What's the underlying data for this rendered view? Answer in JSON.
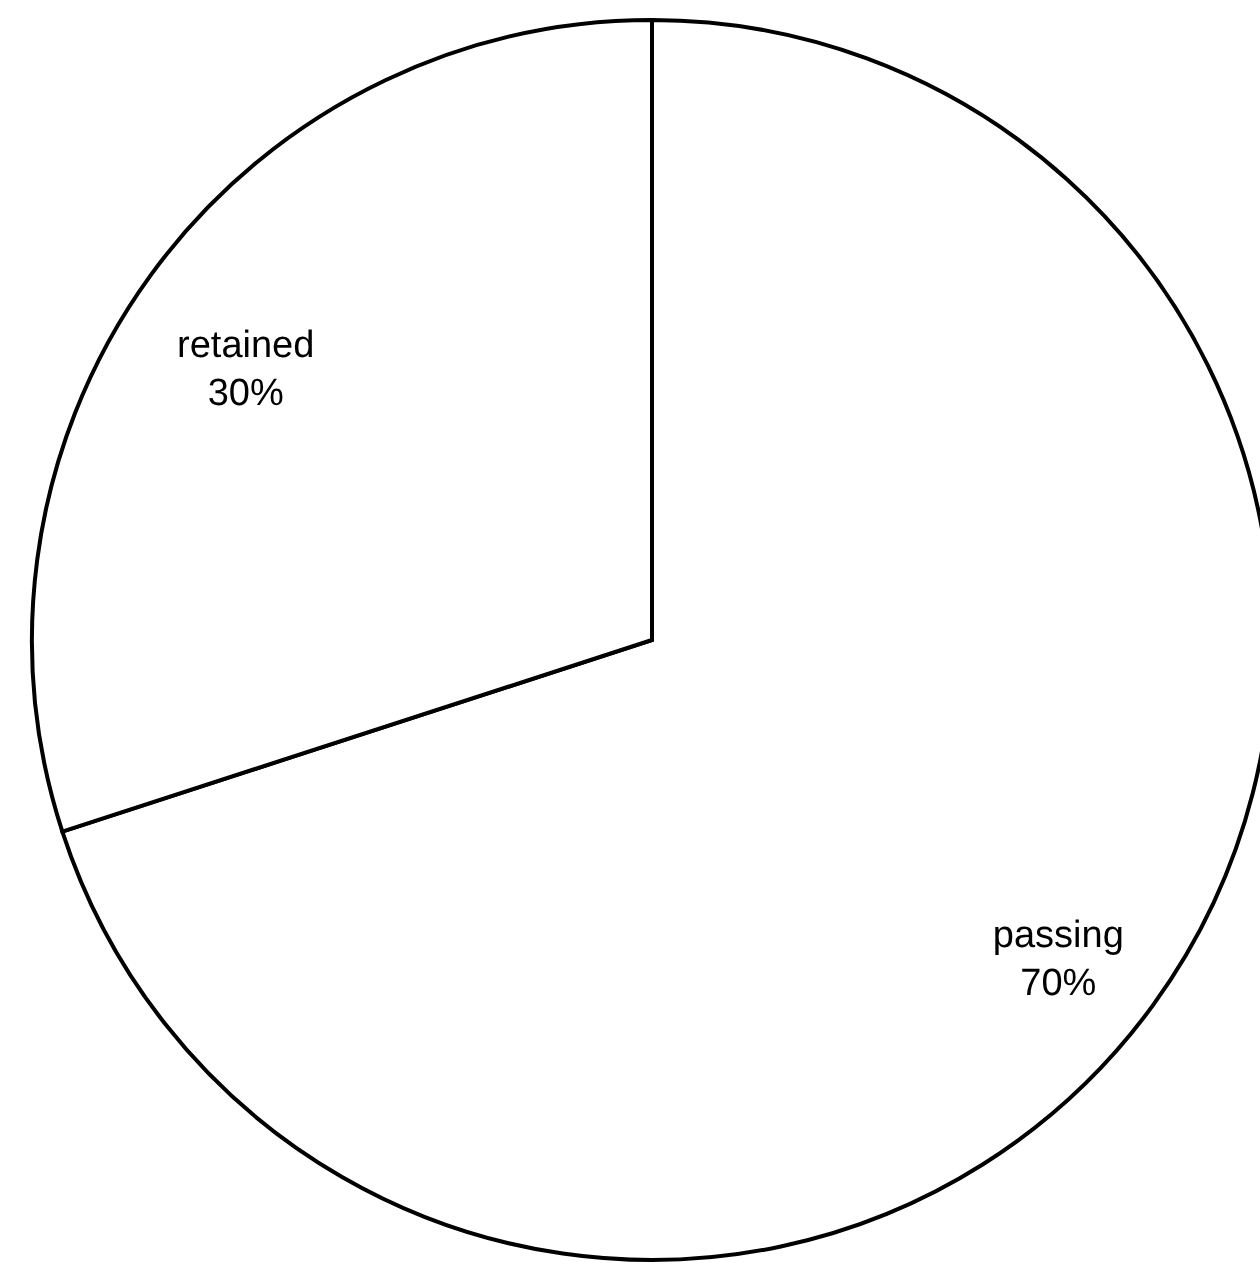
{
  "chart_data": {
    "type": "pie",
    "categories": [
      "passing",
      "retained"
    ],
    "values": [
      70,
      30
    ],
    "colors": [
      "#ffffff",
      "#ffffff"
    ],
    "value_labels": [
      "70%",
      "30%"
    ]
  }
}
